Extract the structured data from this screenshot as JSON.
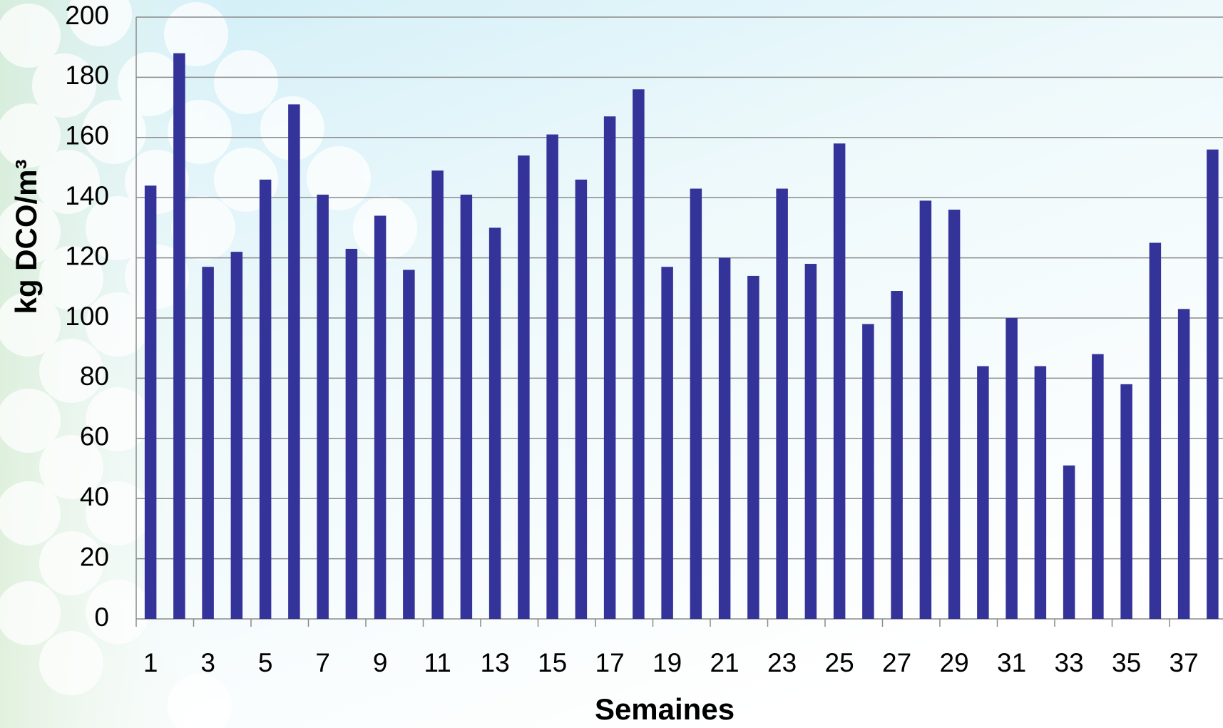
{
  "chart_data": {
    "type": "bar",
    "x_label": "Semaines",
    "y_label": "kg DCO/m³",
    "categories": [
      "1",
      null,
      "3",
      null,
      "5",
      null,
      "7",
      null,
      "9",
      null,
      "11",
      null,
      "13",
      null,
      "15",
      null,
      "17",
      null,
      "19",
      null,
      "21",
      null,
      "23",
      null,
      "25",
      null,
      "27",
      null,
      "29",
      null,
      "31",
      null,
      "33",
      null,
      "35",
      null,
      "37",
      null
    ],
    "values": [
      144,
      188,
      117,
      122,
      146,
      171,
      141,
      123,
      134,
      116,
      149,
      141,
      130,
      154,
      161,
      146,
      167,
      176,
      117,
      143,
      120,
      114,
      143,
      118,
      158,
      98,
      109,
      139,
      136,
      84,
      100,
      84,
      51,
      88,
      78,
      125,
      103,
      156
    ],
    "color": "#333399",
    "ylim": [
      0,
      200
    ],
    "yticks": [
      0,
      20,
      40,
      60,
      80,
      100,
      120,
      140,
      160,
      180,
      200
    ],
    "grid": true
  }
}
